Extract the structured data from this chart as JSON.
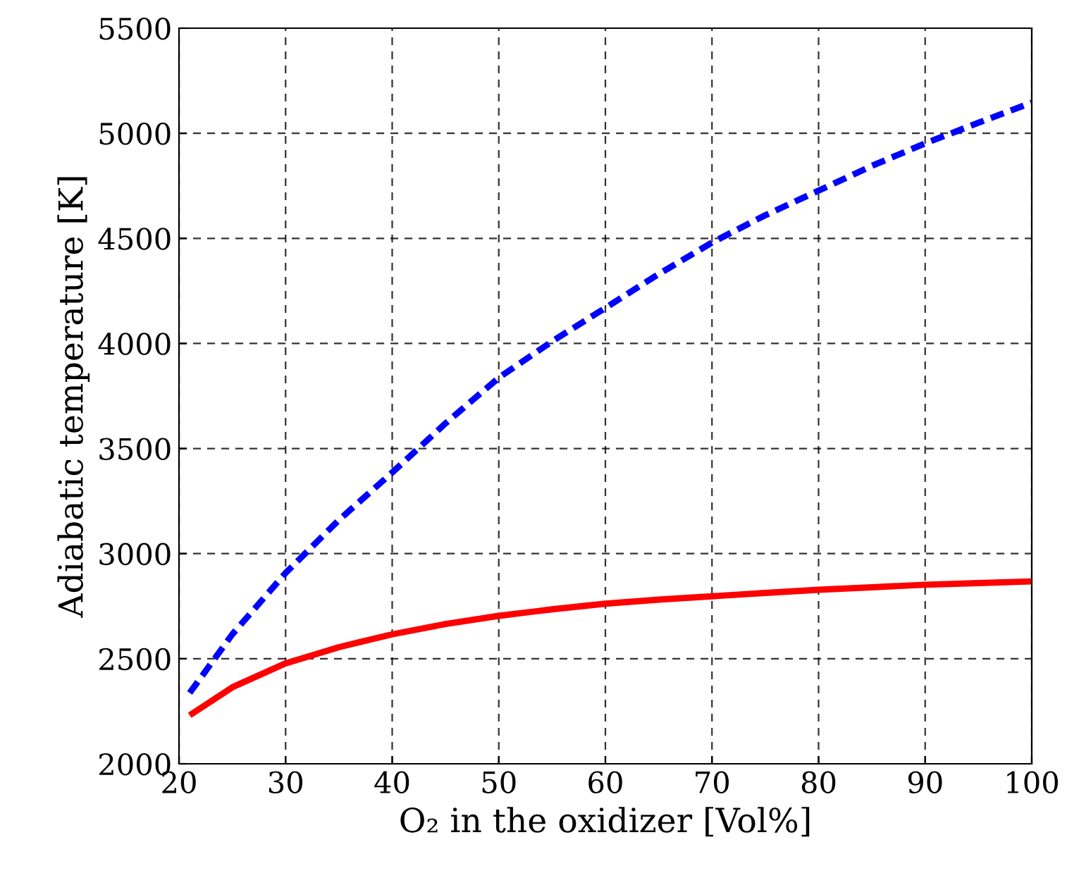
{
  "chart_data": {
    "type": "line",
    "xlabel": "O₂ in the oxidizer [Vol%]",
    "ylabel": "Adiabatic temperature [K]",
    "x": [
      21,
      25,
      30,
      35,
      40,
      45,
      50,
      55,
      60,
      65,
      70,
      75,
      80,
      85,
      90,
      95,
      100
    ],
    "series": [
      {
        "color": "#0000ff",
        "line_style": "dashed",
        "values": [
          2337,
          2616,
          2908,
          3160,
          3386,
          3620,
          3837,
          4010,
          4169,
          4330,
          4480,
          4610,
          4727,
          4845,
          4952,
          5050,
          5146
        ]
      },
      {
        "color": "#ff0000",
        "line_style": "solid",
        "values": [
          2231,
          2364,
          2478,
          2555,
          2616,
          2665,
          2704,
          2735,
          2762,
          2781,
          2797,
          2813,
          2828,
          2840,
          2852,
          2860,
          2868
        ]
      }
    ],
    "xlim": [
      20,
      100
    ],
    "xticks": [
      20,
      30,
      40,
      50,
      60,
      70,
      80,
      90,
      100
    ],
    "ylim": [
      2000,
      5500
    ],
    "yticks": [
      2000,
      2500,
      3000,
      3500,
      4000,
      4500,
      5000,
      5500
    ],
    "grid": true
  }
}
